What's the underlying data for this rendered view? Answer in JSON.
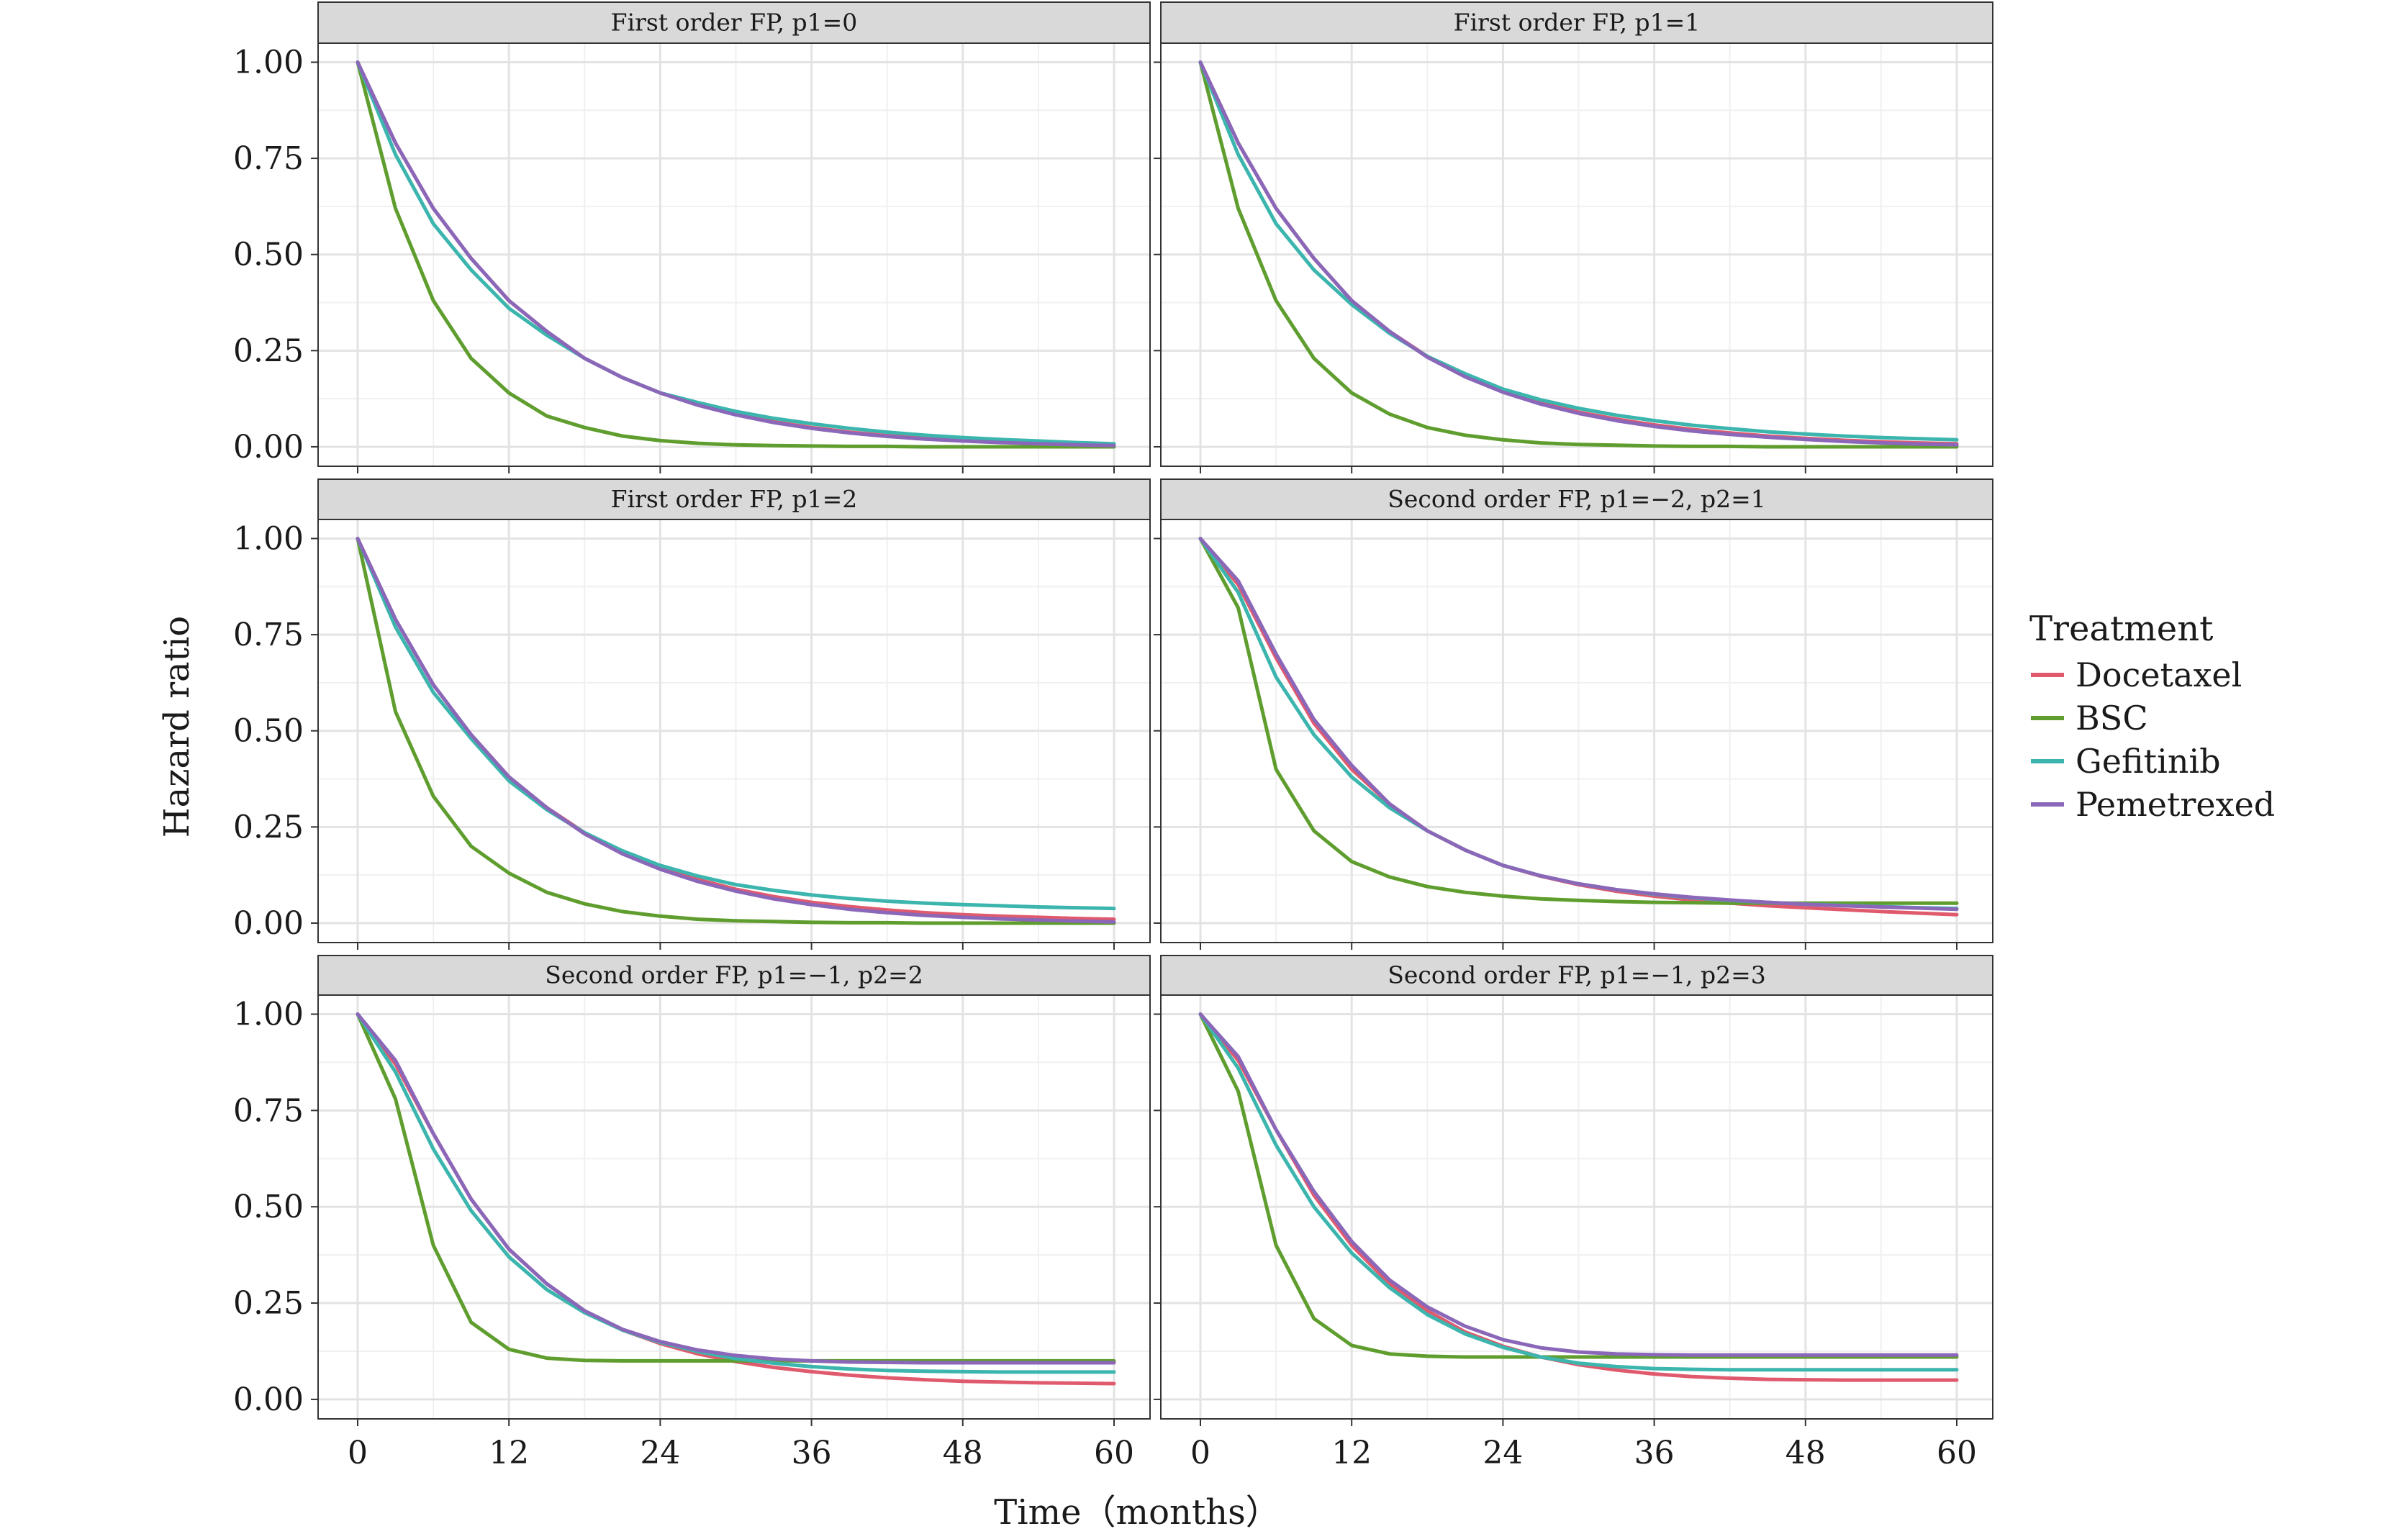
{
  "chart_data": {
    "type": "line",
    "ylabel": "Hazard ratio",
    "xlabel": "Time（months）",
    "xlim": [
      0,
      60
    ],
    "ylim": [
      0,
      1
    ],
    "x_ticks": [
      0,
      12,
      24,
      36,
      48,
      60
    ],
    "y_ticks": [
      "0.00",
      "0.25",
      "0.50",
      "0.75",
      "1.00"
    ],
    "grid": true,
    "legend": {
      "title": "Treatment",
      "placement": "right",
      "entries": [
        "Docetaxel",
        "BSC",
        "Gefitinib",
        "Pemetrexed"
      ]
    },
    "colors": {
      "Docetaxel": "#e05a6e",
      "BSC": "#5f9e2e",
      "Gefitinib": "#3bb5ad",
      "Pemetrexed": "#8a67b8"
    },
    "x": [
      0,
      3,
      6,
      9,
      12,
      15,
      18,
      21,
      24,
      27,
      30,
      33,
      36,
      39,
      42,
      45,
      48,
      51,
      54,
      57,
      60
    ],
    "panels": [
      {
        "title": "First order FP, p1=0",
        "series": [
          {
            "name": "Docetaxel",
            "values": [
              1.0,
              0.79,
              0.62,
              0.49,
              0.38,
              0.3,
              0.23,
              0.18,
              0.14,
              0.11,
              0.085,
              0.065,
              0.05,
              0.038,
              0.029,
              0.022,
              0.016,
              0.012,
              0.009,
              0.006,
              0.004
            ]
          },
          {
            "name": "BSC",
            "values": [
              1.0,
              0.62,
              0.38,
              0.23,
              0.14,
              0.08,
              0.05,
              0.028,
              0.016,
              0.009,
              0.005,
              0.003,
              0.002,
              0.001,
              0.001,
              0.0,
              0.0,
              0.0,
              0.0,
              0.0,
              0.0
            ]
          },
          {
            "name": "Gefitinib",
            "values": [
              1.0,
              0.76,
              0.58,
              0.46,
              0.36,
              0.29,
              0.23,
              0.18,
              0.14,
              0.115,
              0.092,
              0.074,
              0.06,
              0.048,
              0.038,
              0.03,
              0.024,
              0.019,
              0.015,
              0.011,
              0.008
            ]
          },
          {
            "name": "Pemetrexed",
            "values": [
              1.0,
              0.79,
              0.62,
              0.49,
              0.38,
              0.3,
              0.23,
              0.18,
              0.14,
              0.108,
              0.083,
              0.063,
              0.048,
              0.036,
              0.027,
              0.02,
              0.015,
              0.011,
              0.008,
              0.005,
              0.003
            ]
          }
        ]
      },
      {
        "title": "First order FP, p1=1",
        "series": [
          {
            "name": "Docetaxel",
            "values": [
              1.0,
              0.79,
              0.62,
              0.49,
              0.38,
              0.3,
              0.235,
              0.185,
              0.145,
              0.115,
              0.09,
              0.072,
              0.057,
              0.045,
              0.036,
              0.028,
              0.022,
              0.017,
              0.013,
              0.01,
              0.008
            ]
          },
          {
            "name": "BSC",
            "values": [
              1.0,
              0.62,
              0.38,
              0.23,
              0.14,
              0.085,
              0.05,
              0.03,
              0.018,
              0.01,
              0.006,
              0.004,
              0.002,
              0.001,
              0.001,
              0.0,
              0.0,
              0.0,
              0.0,
              0.0,
              0.0
            ]
          },
          {
            "name": "Gefitinib",
            "values": [
              1.0,
              0.76,
              0.58,
              0.46,
              0.37,
              0.295,
              0.235,
              0.19,
              0.15,
              0.122,
              0.1,
              0.082,
              0.068,
              0.056,
              0.047,
              0.039,
              0.033,
              0.028,
              0.024,
              0.021,
              0.018
            ]
          },
          {
            "name": "Pemetrexed",
            "values": [
              1.0,
              0.79,
              0.62,
              0.49,
              0.38,
              0.3,
              0.233,
              0.182,
              0.142,
              0.111,
              0.087,
              0.068,
              0.053,
              0.041,
              0.032,
              0.025,
              0.019,
              0.014,
              0.01,
              0.007,
              0.005
            ]
          }
        ]
      },
      {
        "title": "First order FP, p1=2",
        "series": [
          {
            "name": "Docetaxel",
            "values": [
              1.0,
              0.79,
              0.62,
              0.49,
              0.38,
              0.3,
              0.235,
              0.185,
              0.145,
              0.113,
              0.088,
              0.069,
              0.054,
              0.043,
              0.034,
              0.027,
              0.022,
              0.018,
              0.015,
              0.012,
              0.01
            ]
          },
          {
            "name": "BSC",
            "values": [
              1.0,
              0.55,
              0.33,
              0.2,
              0.13,
              0.08,
              0.05,
              0.03,
              0.018,
              0.01,
              0.006,
              0.004,
              0.002,
              0.001,
              0.001,
              0.0,
              0.0,
              0.0,
              0.0,
              0.0,
              0.0
            ]
          },
          {
            "name": "Gefitinib",
            "values": [
              1.0,
              0.77,
              0.6,
              0.48,
              0.37,
              0.295,
              0.235,
              0.188,
              0.15,
              0.122,
              0.1,
              0.085,
              0.073,
              0.064,
              0.057,
              0.052,
              0.048,
              0.045,
              0.042,
              0.04,
              0.038
            ]
          },
          {
            "name": "Pemetrexed",
            "values": [
              1.0,
              0.79,
              0.62,
              0.49,
              0.38,
              0.3,
              0.232,
              0.18,
              0.14,
              0.108,
              0.083,
              0.063,
              0.048,
              0.036,
              0.027,
              0.02,
              0.015,
              0.011,
              0.008,
              0.005,
              0.003
            ]
          }
        ]
      },
      {
        "title": "Second order FP, p1=−2, p2=1",
        "series": [
          {
            "name": "Docetaxel",
            "values": [
              1.0,
              0.88,
              0.69,
              0.52,
              0.4,
              0.31,
              0.24,
              0.19,
              0.15,
              0.122,
              0.1,
              0.083,
              0.07,
              0.06,
              0.052,
              0.045,
              0.04,
              0.035,
              0.03,
              0.026,
              0.022
            ]
          },
          {
            "name": "BSC",
            "values": [
              1.0,
              0.82,
              0.4,
              0.24,
              0.16,
              0.12,
              0.095,
              0.08,
              0.07,
              0.063,
              0.059,
              0.056,
              0.054,
              0.053,
              0.052,
              0.052,
              0.052,
              0.052,
              0.052,
              0.052,
              0.052
            ]
          },
          {
            "name": "Gefitinib",
            "values": [
              1.0,
              0.86,
              0.64,
              0.49,
              0.38,
              0.3,
              0.24,
              0.19,
              0.15,
              0.123,
              0.102,
              0.087,
              0.075,
              0.066,
              0.059,
              0.054,
              0.049,
              0.046,
              0.043,
              0.04,
              0.038
            ]
          },
          {
            "name": "Pemetrexed",
            "values": [
              1.0,
              0.89,
              0.7,
              0.53,
              0.41,
              0.31,
              0.24,
              0.19,
              0.15,
              0.123,
              0.102,
              0.087,
              0.076,
              0.067,
              0.06,
              0.054,
              0.049,
              0.045,
              0.042,
              0.039,
              0.036
            ]
          }
        ]
      },
      {
        "title": "Second order FP, p1=−1, p2=2",
        "series": [
          {
            "name": "Docetaxel",
            "values": [
              1.0,
              0.87,
              0.69,
              0.52,
              0.39,
              0.3,
              0.23,
              0.18,
              0.145,
              0.118,
              0.098,
              0.083,
              0.072,
              0.063,
              0.056,
              0.051,
              0.047,
              0.045,
              0.043,
              0.042,
              0.041
            ]
          },
          {
            "name": "BSC",
            "values": [
              1.0,
              0.78,
              0.4,
              0.2,
              0.13,
              0.107,
              0.101,
              0.1,
              0.1,
              0.1,
              0.1,
              0.1,
              0.1,
              0.1,
              0.1,
              0.1,
              0.1,
              0.1,
              0.1,
              0.1,
              0.1
            ]
          },
          {
            "name": "Gefitinib",
            "values": [
              1.0,
              0.85,
              0.65,
              0.49,
              0.37,
              0.285,
              0.225,
              0.18,
              0.148,
              0.124,
              0.106,
              0.094,
              0.085,
              0.079,
              0.075,
              0.073,
              0.072,
              0.071,
              0.071,
              0.071,
              0.071
            ]
          },
          {
            "name": "Pemetrexed",
            "values": [
              1.0,
              0.88,
              0.69,
              0.52,
              0.39,
              0.3,
              0.23,
              0.182,
              0.15,
              0.128,
              0.114,
              0.105,
              0.1,
              0.097,
              0.096,
              0.095,
              0.095,
              0.095,
              0.095,
              0.095,
              0.095
            ]
          }
        ]
      },
      {
        "title": "Second order FP, p1=−1, p2=3",
        "series": [
          {
            "name": "Docetaxel",
            "values": [
              1.0,
              0.88,
              0.7,
              0.53,
              0.4,
              0.3,
              0.23,
              0.175,
              0.138,
              0.11,
              0.09,
              0.076,
              0.066,
              0.059,
              0.055,
              0.052,
              0.051,
              0.05,
              0.05,
              0.05,
              0.05
            ]
          },
          {
            "name": "BSC",
            "values": [
              1.0,
              0.8,
              0.4,
              0.21,
              0.14,
              0.118,
              0.112,
              0.11,
              0.11,
              0.11,
              0.11,
              0.11,
              0.11,
              0.11,
              0.11,
              0.11,
              0.11,
              0.11,
              0.11,
              0.11,
              0.11
            ]
          },
          {
            "name": "Gefitinib",
            "values": [
              1.0,
              0.86,
              0.66,
              0.5,
              0.38,
              0.29,
              0.22,
              0.17,
              0.135,
              0.11,
              0.094,
              0.085,
              0.08,
              0.078,
              0.077,
              0.077,
              0.077,
              0.077,
              0.077,
              0.077,
              0.077
            ]
          },
          {
            "name": "Pemetrexed",
            "values": [
              1.0,
              0.89,
              0.7,
              0.54,
              0.41,
              0.31,
              0.24,
              0.19,
              0.155,
              0.134,
              0.123,
              0.118,
              0.116,
              0.115,
              0.115,
              0.115,
              0.115,
              0.115,
              0.115,
              0.115,
              0.115
            ]
          }
        ]
      }
    ]
  }
}
